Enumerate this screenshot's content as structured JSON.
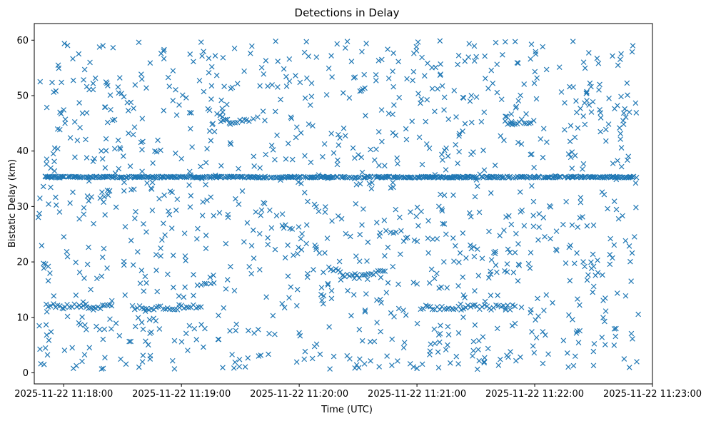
{
  "chart_data": {
    "type": "scatter",
    "title": "Detections in Delay",
    "xlabel": "Time (UTC)",
    "ylabel": "Bistatic Delay (km)",
    "marker": "x",
    "color": "#1f77b4",
    "grid": false,
    "xlim": [
      "2025-11-22 11:17:45",
      "2025-11-22 11:23:00"
    ],
    "ylim": [
      -2,
      63
    ],
    "xticks": [
      "2025-11-22 11:18:00",
      "2025-11-22 11:19:00",
      "2025-11-22 11:20:00",
      "2025-11-22 11:21:00",
      "2025-11-22 11:22:00",
      "2025-11-22 11:23:00"
    ],
    "yticks": [
      0,
      10,
      20,
      30,
      40,
      50,
      60
    ],
    "x_range_of_points": [
      "2025-11-22 11:17:47",
      "2025-11-22 11:22:53"
    ],
    "bands": [
      {
        "delay_km": 35.3,
        "x": [
          "2025-11-22 11:17:51",
          "2025-11-22 11:22:52"
        ],
        "description": "dense horizontal line"
      },
      {
        "delay_km": 12.0,
        "x": [
          "2025-11-22 11:17:51",
          "2025-11-22 11:18:25"
        ]
      },
      {
        "delay_km": 11.8,
        "x": [
          "2025-11-22 11:18:35",
          "2025-11-22 11:19:10"
        ]
      },
      {
        "delay_km": 11.8,
        "x": [
          "2025-11-22 11:21:02",
          "2025-11-22 11:21:50"
        ]
      },
      {
        "delay_km": 17.5,
        "x": [
          "2025-11-22 11:20:15",
          "2025-11-22 11:20:45"
        ],
        "description": "curved arc, minimum near 11:20:30"
      },
      {
        "delay_km": 45.3,
        "x": [
          "2025-11-22 11:19:20",
          "2025-11-22 11:19:35"
        ]
      },
      {
        "delay_km": 45.3,
        "x": [
          "2025-11-22 11:21:45",
          "2025-11-22 11:22:00"
        ]
      }
    ],
    "sample_points": [
      {
        "x": "2025-11-22 11:17:48",
        "y": 52.5
      },
      {
        "x": "2025-11-22 11:17:50",
        "y": 1.5
      },
      {
        "x": "2025-11-22 11:18:20",
        "y": 59.0
      },
      {
        "x": "2025-11-22 11:19:48",
        "y": 59.8
      },
      {
        "x": "2025-11-22 11:21:00",
        "y": 0.8
      },
      {
        "x": "2025-11-22 11:21:45",
        "y": 59.7
      },
      {
        "x": "2025-11-22 11:22:50",
        "y": 59.0
      },
      {
        "x": "2025-11-22 11:22:52",
        "y": 2.0
      }
    ]
  }
}
